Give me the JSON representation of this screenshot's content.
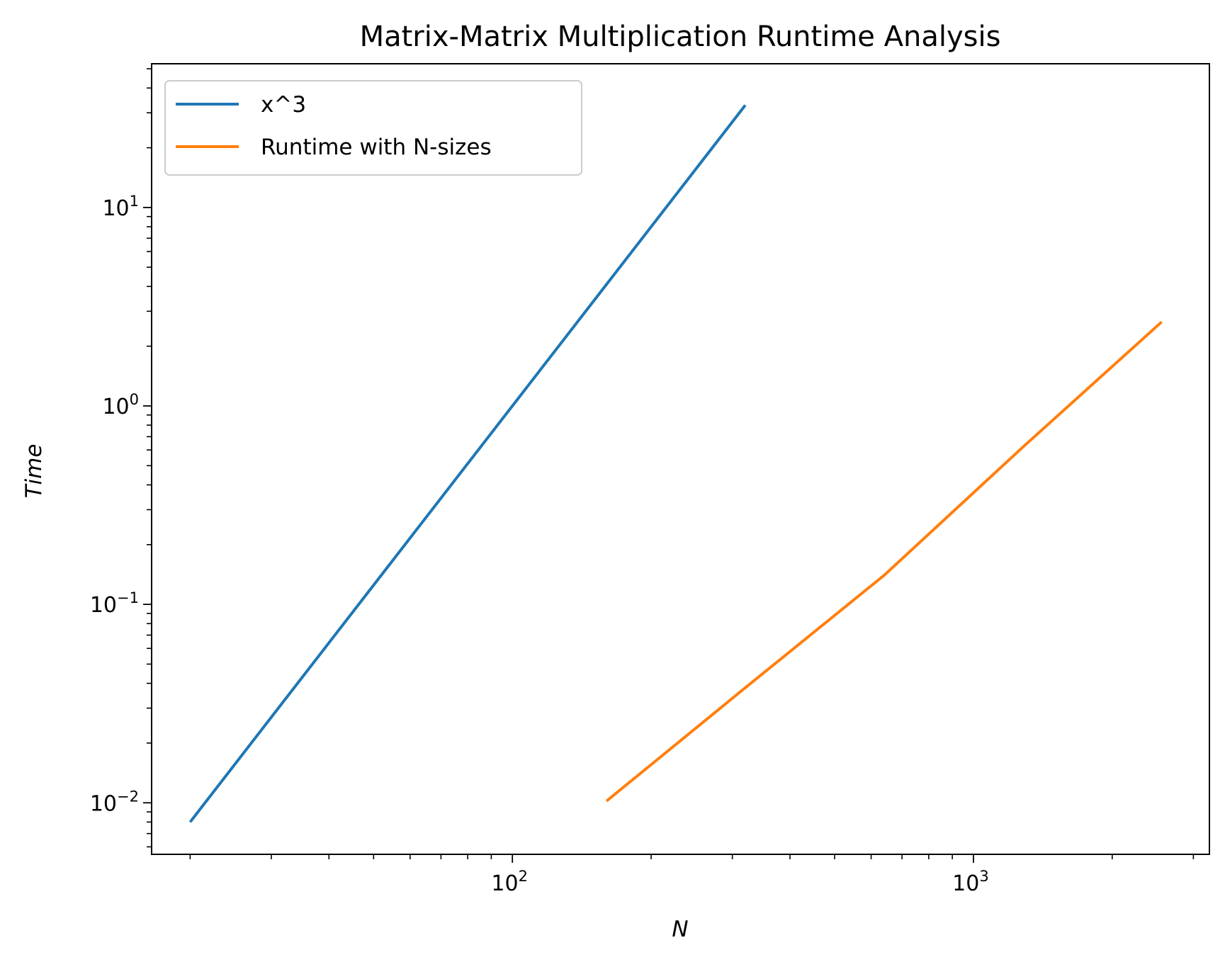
{
  "chart_data": {
    "type": "line",
    "title": "Matrix-Matrix Multiplication Runtime Analysis",
    "xlabel": "N",
    "ylabel": "Time",
    "xscale": "log",
    "yscale": "log",
    "xlim": [
      16.5,
      3250
    ],
    "ylim": [
      0.0055,
      53
    ],
    "xticks": [
      {
        "value": 100,
        "base": "10",
        "exp": "2"
      },
      {
        "value": 1000,
        "base": "10",
        "exp": "3"
      }
    ],
    "yticks": [
      {
        "value": 0.01,
        "base": "10",
        "exp": "−2"
      },
      {
        "value": 0.1,
        "base": "10",
        "exp": "−1"
      },
      {
        "value": 1,
        "base": "10",
        "exp": "0"
      },
      {
        "value": 10,
        "base": "10",
        "exp": "1"
      }
    ],
    "grid": false,
    "legend_position": "top-left",
    "series": [
      {
        "name": "x^3",
        "color": "#1f77b4",
        "x": [
          20,
          40,
          80,
          160,
          320
        ],
        "y": [
          0.008,
          0.064,
          0.512,
          4.096,
          32.768
        ]
      },
      {
        "name": "Runtime with N-sizes",
        "color": "#ff7f0e",
        "x": [
          160,
          320,
          640,
          1280,
          2560
        ],
        "y": [
          0.0102,
          0.038,
          0.14,
          0.62,
          2.65
        ]
      }
    ]
  }
}
